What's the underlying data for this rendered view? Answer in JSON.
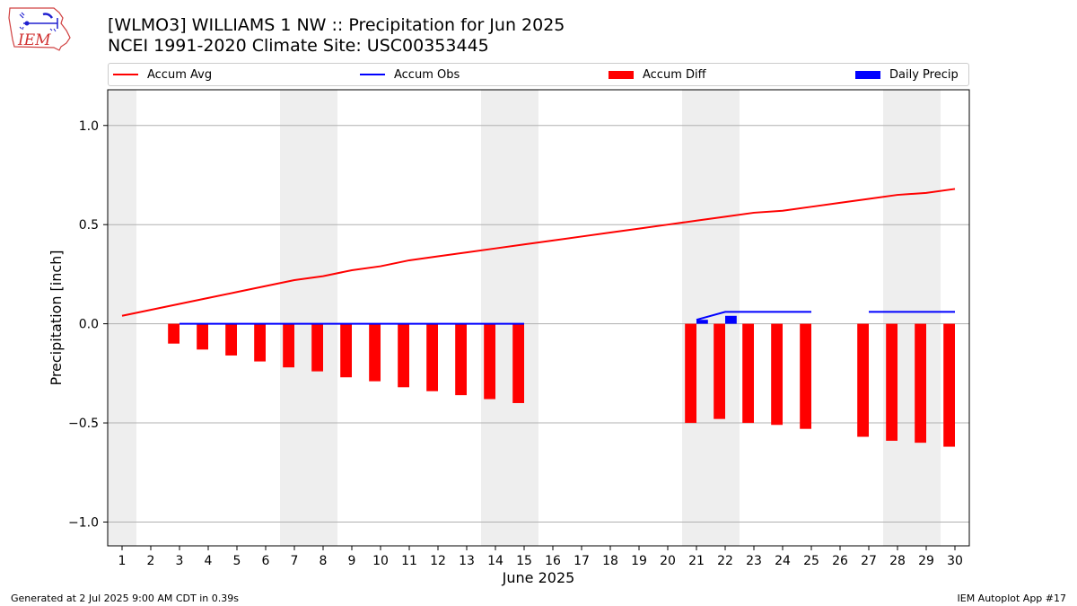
{
  "header": {
    "title": "[WLMO3] WILLIAMS 1 NW :: Precipitation for Jun 2025",
    "subtitle": "NCEI 1991-2020 Climate Site: USC00353445",
    "logo_text": "IEM"
  },
  "footer": {
    "generated": "Generated at 2 Jul 2025 9:00 AM CDT in 0.39s",
    "app": "IEM Autoplot App #17"
  },
  "colors": {
    "avg": "#ff0000",
    "obs": "#0000ff",
    "diff": "#ff0000",
    "daily": "#0000ff",
    "weekend": "#eeeeee",
    "grid": "#b0b0b0"
  },
  "legend": [
    {
      "label": "Accum Avg",
      "kind": "line",
      "color": "#ff0000"
    },
    {
      "label": "Accum Obs",
      "kind": "line",
      "color": "#0000ff"
    },
    {
      "label": "Accum Diff",
      "kind": "rect",
      "color": "#ff0000"
    },
    {
      "label": "Daily Precip",
      "kind": "rect",
      "color": "#0000ff"
    }
  ],
  "chart_data": {
    "type": "line",
    "xlabel": "June 2025",
    "ylabel": "Precipitation [inch]",
    "xlim": [
      0.5,
      30.5
    ],
    "ylim": [
      -1.12,
      1.18
    ],
    "yticks": [
      -1.0,
      -0.5,
      0.0,
      0.5,
      1.0
    ],
    "ytick_labels": [
      "−1.0",
      "−0.5",
      "0.0",
      "0.5",
      "1.0"
    ],
    "xticks": [
      1,
      2,
      3,
      4,
      5,
      6,
      7,
      8,
      9,
      10,
      11,
      12,
      13,
      14,
      15,
      16,
      17,
      18,
      19,
      20,
      21,
      22,
      23,
      24,
      25,
      26,
      27,
      28,
      29,
      30
    ],
    "grid": "horizontal",
    "legend_position": "top",
    "weekend_bands": [
      [
        0.5,
        1.5
      ],
      [
        6.5,
        8.5
      ],
      [
        13.5,
        15.5
      ],
      [
        20.5,
        22.5
      ],
      [
        27.5,
        29.5
      ]
    ],
    "series": [
      {
        "name": "Accum Avg",
        "type": "line",
        "x": [
          1,
          2,
          3,
          4,
          5,
          6,
          7,
          8,
          9,
          10,
          11,
          12,
          13,
          14,
          15,
          16,
          17,
          18,
          19,
          20,
          21,
          22,
          23,
          24,
          25,
          26,
          27,
          28,
          29,
          30
        ],
        "values": [
          0.04,
          0.07,
          0.1,
          0.13,
          0.16,
          0.19,
          0.22,
          0.24,
          0.27,
          0.29,
          0.32,
          0.34,
          0.36,
          0.38,
          0.4,
          0.42,
          0.44,
          0.46,
          0.48,
          0.5,
          0.52,
          0.54,
          0.56,
          0.57,
          0.59,
          0.61,
          0.63,
          0.65,
          0.66,
          0.68
        ]
      },
      {
        "name": "Accum Obs",
        "type": "line",
        "segments": [
          {
            "x": [
              3,
              4,
              5,
              6,
              7,
              8,
              9,
              10,
              11,
              12,
              13,
              14,
              15
            ],
            "values": [
              0,
              0,
              0,
              0,
              0,
              0,
              0,
              0,
              0,
              0,
              0,
              0,
              0
            ]
          },
          {
            "x": [
              21,
              22,
              23,
              24,
              25
            ],
            "values": [
              0.02,
              0.06,
              0.06,
              0.06,
              0.06
            ]
          },
          {
            "x": [
              27,
              28,
              29,
              30
            ],
            "values": [
              0.06,
              0.06,
              0.06,
              0.06
            ]
          }
        ]
      },
      {
        "name": "Accum Diff",
        "type": "bar",
        "x": [
          3,
          4,
          5,
          6,
          7,
          8,
          9,
          10,
          11,
          12,
          13,
          14,
          15,
          21,
          22,
          23,
          24,
          25,
          27,
          28,
          29,
          30
        ],
        "values": [
          -0.1,
          -0.13,
          -0.16,
          -0.19,
          -0.22,
          -0.24,
          -0.27,
          -0.29,
          -0.32,
          -0.34,
          -0.36,
          -0.38,
          -0.4,
          -0.5,
          -0.48,
          -0.5,
          -0.51,
          -0.53,
          -0.57,
          -0.59,
          -0.6,
          -0.62
        ]
      },
      {
        "name": "Daily Precip",
        "type": "bar",
        "x": [
          21,
          22
        ],
        "values": [
          0.02,
          0.04
        ]
      }
    ]
  }
}
